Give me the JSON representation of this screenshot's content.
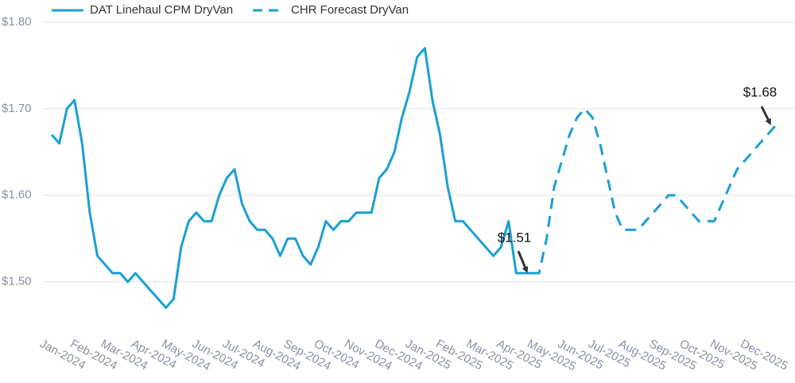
{
  "chart_data": {
    "type": "line",
    "categories": [
      "Jan-2024",
      null,
      null,
      null,
      "Feb-2024",
      null,
      null,
      null,
      "Mar-2024",
      null,
      null,
      null,
      "Apr-2024",
      null,
      null,
      null,
      "May-2024",
      null,
      null,
      null,
      "Jun-2024",
      null,
      null,
      null,
      "Jul-2024",
      null,
      null,
      null,
      "Aug-2024",
      null,
      null,
      null,
      "Sep-2024",
      null,
      null,
      null,
      "Oct-2024",
      null,
      null,
      null,
      "Nov-2024",
      null,
      null,
      null,
      "Dec-2024",
      null,
      null,
      null,
      "Jan-2025",
      null,
      null,
      null,
      "Feb-2025",
      null,
      null,
      null,
      "Mar-2025",
      null,
      null,
      null,
      "Apr-2025",
      null,
      null,
      null,
      "May-2025",
      null,
      null,
      null,
      "Jun-2025",
      null,
      null,
      null,
      "Jul-2025",
      null,
      null,
      null,
      "Aug-2025",
      null,
      null,
      null,
      "Sep-2025",
      null,
      null,
      null,
      "Oct-2025",
      null,
      null,
      null,
      "Nov-2025",
      null,
      null,
      null,
      "Dec-2025",
      null,
      null,
      null
    ],
    "series": [
      {
        "name": "DAT Linehaul CPM DryVan",
        "color": "#1aa0d3",
        "dash": false,
        "values": [
          1.67,
          1.66,
          1.7,
          1.71,
          1.66,
          1.58,
          1.53,
          1.52,
          1.51,
          1.51,
          1.5,
          1.51,
          1.5,
          1.49,
          1.48,
          1.47,
          1.48,
          1.54,
          1.57,
          1.58,
          1.57,
          1.57,
          1.6,
          1.62,
          1.63,
          1.59,
          1.57,
          1.56,
          1.56,
          1.55,
          1.53,
          1.55,
          1.55,
          1.53,
          1.52,
          1.54,
          1.57,
          1.56,
          1.57,
          1.57,
          1.58,
          1.58,
          1.58,
          1.62,
          1.63,
          1.65,
          1.69,
          1.72,
          1.76,
          1.77,
          1.71,
          1.67,
          1.61,
          1.57,
          1.57,
          1.56,
          1.55,
          1.54,
          1.53,
          1.54,
          1.57,
          1.51,
          1.51,
          1.51,
          null,
          null,
          null,
          null,
          null,
          null,
          null,
          null,
          null,
          null,
          null,
          null,
          null,
          null,
          null,
          null,
          null,
          null,
          null,
          null,
          null,
          null,
          null,
          null,
          null,
          null,
          null,
          null,
          null,
          null,
          null,
          null
        ]
      },
      {
        "name": "CHR Forecast DryVan",
        "color": "#1aa0d3",
        "dash": true,
        "values": [
          null,
          null,
          null,
          null,
          null,
          null,
          null,
          null,
          null,
          null,
          null,
          null,
          null,
          null,
          null,
          null,
          null,
          null,
          null,
          null,
          null,
          null,
          null,
          null,
          null,
          null,
          null,
          null,
          null,
          null,
          null,
          null,
          null,
          null,
          null,
          null,
          null,
          null,
          null,
          null,
          null,
          null,
          null,
          null,
          null,
          null,
          null,
          null,
          null,
          null,
          null,
          null,
          null,
          null,
          null,
          null,
          null,
          null,
          null,
          null,
          null,
          null,
          null,
          1.51,
          1.51,
          1.55,
          1.61,
          1.64,
          1.67,
          1.69,
          1.7,
          1.69,
          1.66,
          1.62,
          1.58,
          1.56,
          1.56,
          1.56,
          1.57,
          1.58,
          1.59,
          1.6,
          1.6,
          1.59,
          1.58,
          1.57,
          1.57,
          1.57,
          1.59,
          1.61,
          1.63,
          1.64,
          1.65,
          1.66,
          1.67,
          1.68
        ]
      }
    ],
    "ylim": [
      1.44,
      1.8
    ],
    "yticks": [
      {
        "value": 1.5,
        "label": "$1.50"
      },
      {
        "value": 1.6,
        "label": "$1.60"
      },
      {
        "value": 1.7,
        "label": "$1.70"
      },
      {
        "value": 1.8,
        "label": "$1.80"
      }
    ],
    "grid": true,
    "annotations": [
      "$1.51",
      "$1.68"
    ]
  }
}
